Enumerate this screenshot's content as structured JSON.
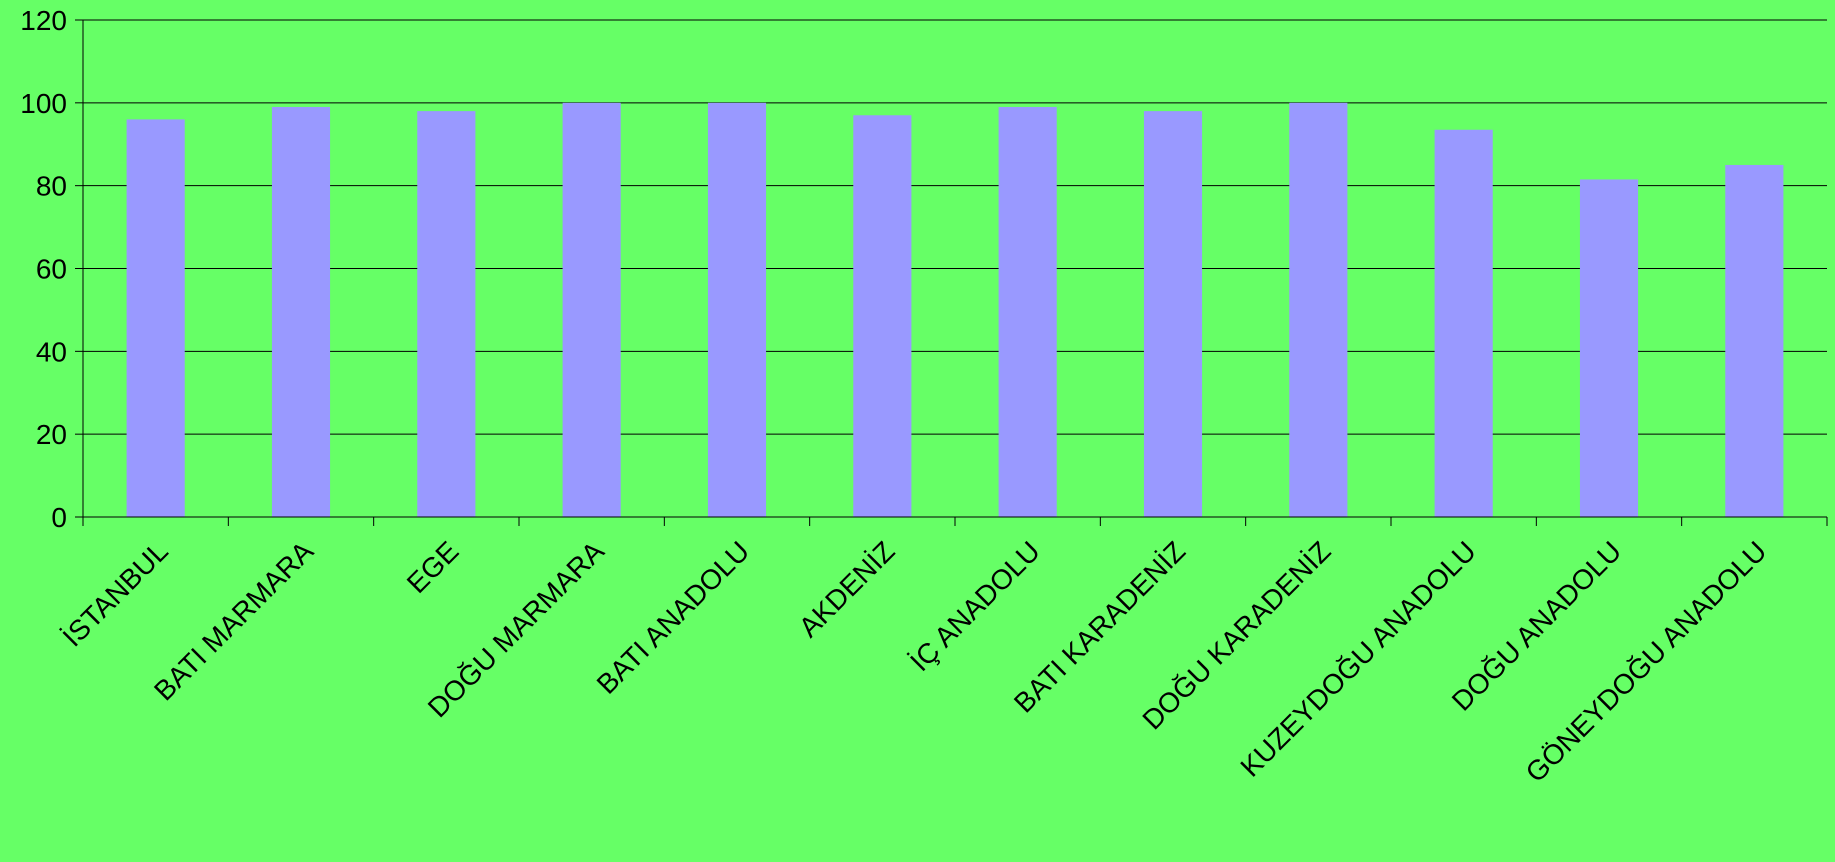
{
  "colors": {
    "background": "#66ff66",
    "bar": "#9999ff",
    "gridline": "#000000",
    "axis": "#000000",
    "text": "#000000"
  },
  "chart_data": {
    "type": "bar",
    "title": "",
    "xlabel": "",
    "ylabel": "",
    "categories": [
      "İSTANBUL",
      "BATI MARMARA",
      "EGE",
      "DOĞU MARMARA",
      "BATI ANADOLU",
      "AKDENİZ",
      "İÇ ANADOLU",
      "BATI KARADENİZ",
      "DOĞU KARADENİZ",
      "KUZEYDOĞU ANADOLU",
      "DOĞU ANADOLU",
      "GÖNEYDOĞU ANADOLU"
    ],
    "values": [
      96,
      99,
      98,
      100,
      100,
      97,
      99,
      98,
      100,
      93.5,
      81.5,
      85
    ],
    "ylim": [
      0,
      120
    ],
    "yticks": [
      0,
      20,
      40,
      60,
      80,
      100,
      120
    ],
    "grid": true,
    "legend": "none"
  }
}
